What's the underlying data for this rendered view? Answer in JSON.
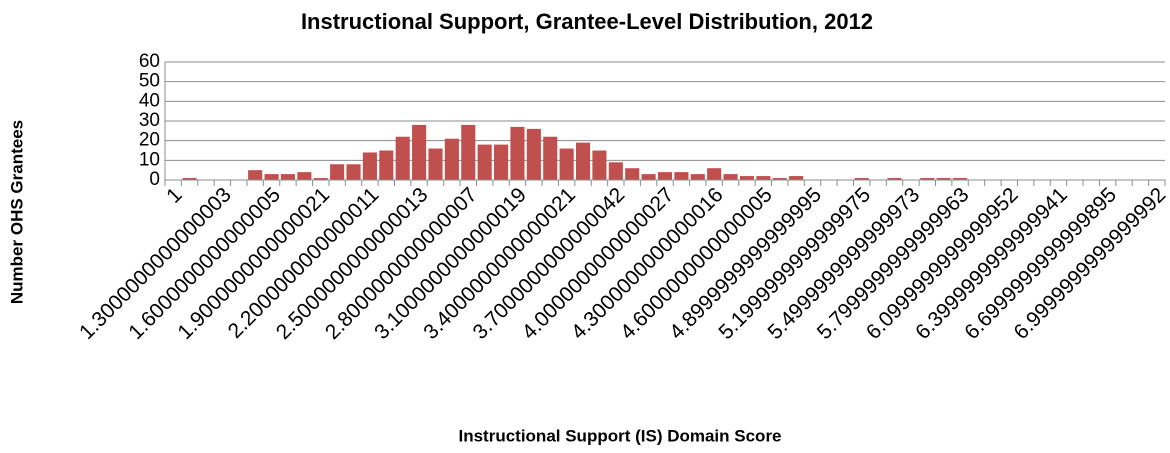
{
  "chart_data": {
    "type": "bar",
    "title": "Instructional Support, Grantee-Level Distribution, 2012",
    "x_label": "Instructional Support (IS) Domain Score",
    "y_label": "Number OHS Grantees",
    "categories": [
      "1",
      null,
      null,
      "1.3000000000000003",
      null,
      null,
      "1.6000000000000005",
      null,
      null,
      "1.9000000000000021",
      null,
      null,
      "2.2000000000000011",
      null,
      null,
      "2.5000000000000013",
      null,
      null,
      "2.8000000000000007",
      null,
      null,
      "3.1000000000000019",
      null,
      null,
      "3.4000000000000021",
      null,
      null,
      "3.7000000000000042",
      null,
      null,
      "4.0000000000000027",
      null,
      null,
      "4.3000000000000016",
      null,
      null,
      "4.6000000000000005",
      null,
      null,
      "4.8999999999999995",
      null,
      null,
      "5.1999999999999975",
      null,
      null,
      "5.4999999999999973",
      null,
      null,
      "5.7999999999999963",
      null,
      null,
      "6.0999999999999952",
      null,
      null,
      "6.3999999999999941",
      null,
      null,
      "6.6999999999999895",
      null,
      null,
      "6.9999999999999992"
    ],
    "values": [
      0,
      1,
      0,
      0,
      0,
      5,
      3,
      3,
      4,
      1,
      8,
      8,
      14,
      15,
      22,
      28,
      16,
      21,
      28,
      18,
      18,
      27,
      26,
      22,
      16,
      19,
      15,
      9,
      6,
      3,
      4,
      4,
      3,
      6,
      3,
      2,
      2,
      1,
      2,
      0,
      0,
      0,
      1,
      0,
      1,
      0,
      1,
      1,
      1,
      0,
      0,
      0,
      0,
      0,
      0,
      0,
      0,
      0,
      0,
      0,
      0
    ],
    "color": "#c0504d",
    "ylim": [
      0,
      60
    ],
    "yticks": [
      0,
      10,
      20,
      30,
      40,
      50,
      60
    ],
    "grid": true
  }
}
